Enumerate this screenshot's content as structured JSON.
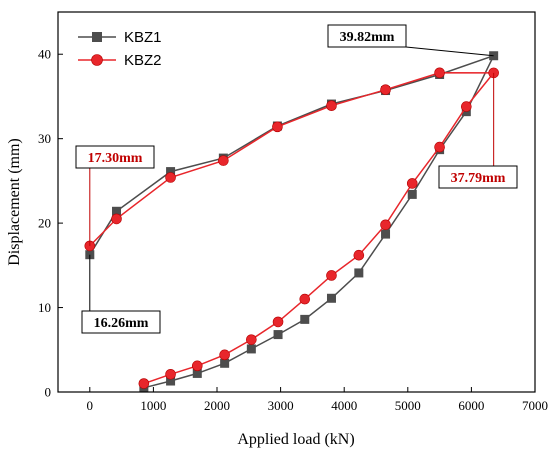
{
  "chart_data": {
    "type": "line",
    "xlabel": "Applied load (kN)",
    "ylabel": "Displacement (mm)",
    "xlim": [
      -500,
      7000
    ],
    "ylim": [
      0,
      45
    ],
    "xticks": [
      0,
      1000,
      2000,
      3000,
      4000,
      5000,
      6000,
      7000
    ],
    "yticks": [
      0,
      10,
      20,
      30,
      40
    ],
    "grid": false,
    "legend_position": "top-left",
    "series": [
      {
        "name": "KBZ1",
        "color": "#4d4d4d",
        "marker": "square",
        "x": [
          0,
          420,
          1270,
          2100,
          2950,
          3800,
          4650,
          5500,
          6350,
          5920,
          5500,
          5070,
          4650,
          4230,
          3800,
          3380,
          2960,
          2540,
          2120,
          1690,
          1270,
          850
        ],
        "y": [
          16.26,
          21.4,
          26.1,
          27.7,
          31.5,
          34.1,
          35.7,
          37.6,
          39.82,
          33.2,
          28.7,
          23.4,
          18.7,
          14.1,
          11.1,
          8.6,
          6.8,
          5.1,
          3.4,
          2.2,
          1.3,
          0.5
        ]
      },
      {
        "name": "KBZ2",
        "color": "#e8262b",
        "marker": "circle",
        "x": [
          0,
          420,
          1270,
          2100,
          2950,
          3800,
          4650,
          5500,
          6350,
          5920,
          5500,
          5070,
          4650,
          4230,
          3800,
          3380,
          2960,
          2540,
          2120,
          1690,
          1270,
          850
        ],
        "y": [
          17.3,
          20.5,
          25.4,
          27.4,
          31.4,
          33.9,
          35.8,
          37.8,
          37.79,
          33.8,
          29.0,
          24.7,
          19.8,
          16.2,
          13.8,
          11.0,
          8.3,
          6.2,
          4.4,
          3.1,
          2.1,
          1.0
        ]
      }
    ],
    "annotations": [
      {
        "text": "39.82mm",
        "color": "#000000"
      },
      {
        "text": "17.30mm",
        "color": "#c00000"
      },
      {
        "text": "37.79mm",
        "color": "#c00000"
      },
      {
        "text": "16.26mm",
        "color": "#000000"
      }
    ]
  }
}
